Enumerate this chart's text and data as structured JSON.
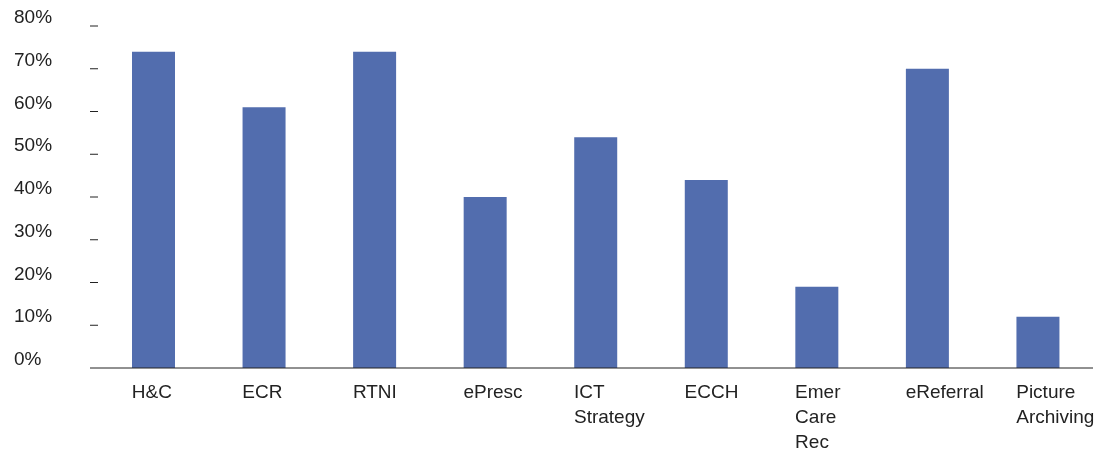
{
  "chart_data": {
    "type": "bar",
    "categories": [
      "H&C",
      "ECR",
      "RTNI",
      "ePresc",
      "ICT Strategy",
      "ECCH",
      "Emer Care Rec",
      "eReferral",
      "Picture Archiving"
    ],
    "values": [
      74,
      61,
      74,
      40,
      54,
      44,
      19,
      70,
      12
    ],
    "color": "#526dae",
    "ylim": [
      0,
      80
    ],
    "yticks": [
      {
        "value": 0,
        "label": "0%"
      },
      {
        "value": 10,
        "label": "10%"
      },
      {
        "value": 20,
        "label": "20%"
      },
      {
        "value": 30,
        "label": "30%"
      },
      {
        "value": 40,
        "label": "40%"
      },
      {
        "value": 50,
        "label": "50%"
      },
      {
        "value": 60,
        "label": "60%"
      },
      {
        "value": 70,
        "label": "70%"
      },
      {
        "value": 80,
        "label": "80%"
      }
    ],
    "grid": false
  }
}
